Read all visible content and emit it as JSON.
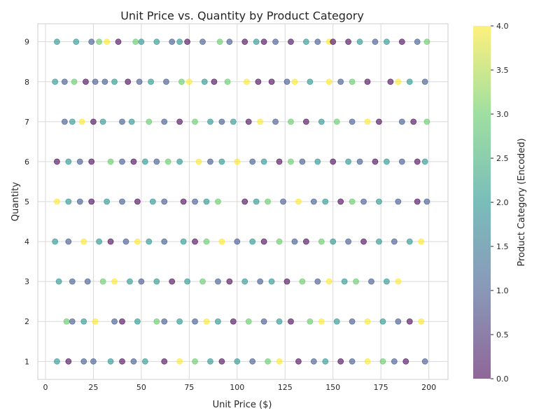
{
  "chart_data": {
    "type": "scatter",
    "title": "Unit Price vs. Quantity by Product Category",
    "xlabel": "Unit Price ($)",
    "ylabel": "Quantity",
    "xlim": [
      -4,
      210
    ],
    "ylim": [
      0.55,
      9.45
    ],
    "xticks": [
      0,
      25,
      50,
      75,
      100,
      125,
      150,
      175,
      200
    ],
    "yticks": [
      1,
      2,
      3,
      4,
      5,
      6,
      7,
      8,
      9
    ],
    "grid": true,
    "colorbar": {
      "label": "Product Category (Encoded)",
      "range": [
        0,
        4
      ],
      "ticks": [
        "0.0",
        "0.5",
        "1.0",
        "1.5",
        "2.0",
        "2.5",
        "3.0",
        "3.5",
        "4.0"
      ],
      "colormap": [
        "#440154",
        "#3b528b",
        "#21918c",
        "#5ec962",
        "#fde725"
      ]
    },
    "points": [
      [
        6,
        9,
        2
      ],
      [
        16,
        9,
        2
      ],
      [
        24,
        9,
        1
      ],
      [
        28,
        9,
        3
      ],
      [
        32,
        9,
        4
      ],
      [
        38,
        9,
        0
      ],
      [
        47,
        9,
        3
      ],
      [
        50,
        9,
        2
      ],
      [
        58,
        9,
        2
      ],
      [
        66,
        9,
        1
      ],
      [
        70,
        9,
        2
      ],
      [
        74,
        9,
        0
      ],
      [
        82,
        9,
        1
      ],
      [
        91,
        9,
        3
      ],
      [
        96,
        9,
        1
      ],
      [
        104,
        9,
        0
      ],
      [
        110,
        9,
        2
      ],
      [
        114,
        9,
        0
      ],
      [
        120,
        9,
        1
      ],
      [
        128,
        9,
        0
      ],
      [
        136,
        9,
        2
      ],
      [
        142,
        9,
        1
      ],
      [
        148,
        9,
        4
      ],
      [
        150,
        9,
        0
      ],
      [
        158,
        9,
        0
      ],
      [
        164,
        9,
        2
      ],
      [
        172,
        9,
        1
      ],
      [
        178,
        9,
        2
      ],
      [
        186,
        9,
        0
      ],
      [
        194,
        9,
        1
      ],
      [
        199,
        9,
        3
      ],
      [
        5,
        8,
        2
      ],
      [
        10,
        8,
        1
      ],
      [
        15,
        8,
        3
      ],
      [
        21,
        8,
        0
      ],
      [
        26,
        8,
        1
      ],
      [
        31,
        8,
        1
      ],
      [
        36,
        8,
        2
      ],
      [
        43,
        8,
        0
      ],
      [
        49,
        8,
        1
      ],
      [
        55,
        8,
        2
      ],
      [
        63,
        8,
        1
      ],
      [
        71,
        8,
        3
      ],
      [
        75,
        8,
        4
      ],
      [
        83,
        8,
        2
      ],
      [
        88,
        8,
        0
      ],
      [
        95,
        8,
        3
      ],
      [
        105,
        8,
        4
      ],
      [
        111,
        8,
        0
      ],
      [
        118,
        8,
        0
      ],
      [
        126,
        8,
        1
      ],
      [
        130,
        8,
        4
      ],
      [
        138,
        8,
        2
      ],
      [
        148,
        8,
        4
      ],
      [
        154,
        8,
        1
      ],
      [
        160,
        8,
        3
      ],
      [
        168,
        8,
        0
      ],
      [
        180,
        8,
        0
      ],
      [
        184,
        8,
        4
      ],
      [
        190,
        8,
        2
      ],
      [
        198,
        8,
        1
      ],
      [
        10,
        7,
        1
      ],
      [
        14,
        7,
        2
      ],
      [
        19,
        7,
        4
      ],
      [
        25,
        7,
        0
      ],
      [
        30,
        7,
        2
      ],
      [
        40,
        7,
        1
      ],
      [
        45,
        7,
        2
      ],
      [
        54,
        7,
        3
      ],
      [
        62,
        7,
        1
      ],
      [
        70,
        7,
        0
      ],
      [
        78,
        7,
        3
      ],
      [
        86,
        7,
        2
      ],
      [
        92,
        7,
        1
      ],
      [
        98,
        7,
        2
      ],
      [
        106,
        7,
        0
      ],
      [
        112,
        7,
        4
      ],
      [
        120,
        7,
        1
      ],
      [
        128,
        7,
        3
      ],
      [
        136,
        7,
        0
      ],
      [
        144,
        7,
        2
      ],
      [
        152,
        7,
        3
      ],
      [
        160,
        7,
        1
      ],
      [
        168,
        7,
        4
      ],
      [
        174,
        7,
        0
      ],
      [
        186,
        7,
        1
      ],
      [
        192,
        7,
        0
      ],
      [
        199,
        7,
        3
      ],
      [
        6,
        6,
        0
      ],
      [
        12,
        6,
        2
      ],
      [
        18,
        6,
        1
      ],
      [
        24,
        6,
        0
      ],
      [
        34,
        6,
        3
      ],
      [
        40,
        6,
        1
      ],
      [
        46,
        6,
        0
      ],
      [
        52,
        6,
        2
      ],
      [
        58,
        6,
        1
      ],
      [
        64,
        6,
        3
      ],
      [
        70,
        6,
        2
      ],
      [
        80,
        6,
        4
      ],
      [
        86,
        6,
        1
      ],
      [
        92,
        6,
        2
      ],
      [
        100,
        6,
        4
      ],
      [
        108,
        6,
        1
      ],
      [
        114,
        6,
        2
      ],
      [
        122,
        6,
        0
      ],
      [
        128,
        6,
        3
      ],
      [
        134,
        6,
        1
      ],
      [
        142,
        6,
        2
      ],
      [
        150,
        6,
        0
      ],
      [
        158,
        6,
        2
      ],
      [
        164,
        6,
        1
      ],
      [
        172,
        6,
        0
      ],
      [
        178,
        6,
        2
      ],
      [
        186,
        6,
        1
      ],
      [
        194,
        6,
        0
      ],
      [
        198,
        6,
        2
      ],
      [
        6,
        5,
        4
      ],
      [
        12,
        5,
        2
      ],
      [
        18,
        5,
        1
      ],
      [
        24,
        5,
        0
      ],
      [
        32,
        5,
        2
      ],
      [
        40,
        5,
        1
      ],
      [
        48,
        5,
        0
      ],
      [
        56,
        5,
        2
      ],
      [
        62,
        5,
        1
      ],
      [
        72,
        5,
        0
      ],
      [
        78,
        5,
        1
      ],
      [
        84,
        5,
        2
      ],
      [
        90,
        5,
        3
      ],
      [
        104,
        5,
        0
      ],
      [
        110,
        5,
        2
      ],
      [
        116,
        5,
        3
      ],
      [
        124,
        5,
        1
      ],
      [
        132,
        5,
        4
      ],
      [
        140,
        5,
        1
      ],
      [
        146,
        5,
        2
      ],
      [
        154,
        5,
        0
      ],
      [
        160,
        5,
        3
      ],
      [
        166,
        5,
        1
      ],
      [
        174,
        5,
        2
      ],
      [
        184,
        5,
        1
      ],
      [
        194,
        5,
        0
      ],
      [
        199,
        5,
        1
      ],
      [
        5,
        4,
        2
      ],
      [
        12,
        4,
        1
      ],
      [
        20,
        4,
        4
      ],
      [
        28,
        4,
        2
      ],
      [
        34,
        4,
        0
      ],
      [
        42,
        4,
        1
      ],
      [
        48,
        4,
        4
      ],
      [
        54,
        4,
        2
      ],
      [
        62,
        4,
        1
      ],
      [
        72,
        4,
        2
      ],
      [
        78,
        4,
        0
      ],
      [
        84,
        4,
        3
      ],
      [
        92,
        4,
        4
      ],
      [
        100,
        4,
        1
      ],
      [
        108,
        4,
        2
      ],
      [
        114,
        4,
        0
      ],
      [
        122,
        4,
        3
      ],
      [
        130,
        4,
        1
      ],
      [
        136,
        4,
        0
      ],
      [
        144,
        4,
        3
      ],
      [
        150,
        4,
        2
      ],
      [
        158,
        4,
        1
      ],
      [
        166,
        4,
        0
      ],
      [
        174,
        4,
        2
      ],
      [
        182,
        4,
        1
      ],
      [
        190,
        4,
        2
      ],
      [
        196,
        4,
        4
      ],
      [
        7,
        3,
        2
      ],
      [
        14,
        3,
        1
      ],
      [
        22,
        3,
        1
      ],
      [
        30,
        3,
        3
      ],
      [
        36,
        3,
        4
      ],
      [
        44,
        3,
        2
      ],
      [
        50,
        3,
        1
      ],
      [
        58,
        3,
        2
      ],
      [
        66,
        3,
        0
      ],
      [
        74,
        3,
        2
      ],
      [
        82,
        3,
        3
      ],
      [
        90,
        3,
        1
      ],
      [
        96,
        3,
        0
      ],
      [
        104,
        3,
        2
      ],
      [
        112,
        3,
        1
      ],
      [
        118,
        3,
        2
      ],
      [
        126,
        3,
        0
      ],
      [
        134,
        3,
        3
      ],
      [
        142,
        3,
        1
      ],
      [
        148,
        3,
        4
      ],
      [
        156,
        3,
        2
      ],
      [
        162,
        3,
        3
      ],
      [
        170,
        3,
        1
      ],
      [
        178,
        3,
        2
      ],
      [
        184,
        3,
        4
      ],
      [
        11,
        2,
        3
      ],
      [
        14,
        2,
        1
      ],
      [
        20,
        2,
        2
      ],
      [
        26,
        2,
        4
      ],
      [
        36,
        2,
        1
      ],
      [
        40,
        2,
        0
      ],
      [
        48,
        2,
        2
      ],
      [
        58,
        2,
        3
      ],
      [
        62,
        2,
        1
      ],
      [
        70,
        2,
        2
      ],
      [
        78,
        2,
        1
      ],
      [
        84,
        2,
        4
      ],
      [
        90,
        2,
        2
      ],
      [
        98,
        2,
        0
      ],
      [
        106,
        2,
        3
      ],
      [
        114,
        2,
        1
      ],
      [
        122,
        2,
        2
      ],
      [
        128,
        2,
        0
      ],
      [
        138,
        2,
        3
      ],
      [
        144,
        2,
        4
      ],
      [
        152,
        2,
        2
      ],
      [
        160,
        2,
        1
      ],
      [
        168,
        2,
        4
      ],
      [
        176,
        2,
        2
      ],
      [
        184,
        2,
        1
      ],
      [
        190,
        2,
        0
      ],
      [
        196,
        2,
        4
      ],
      [
        6,
        1,
        2
      ],
      [
        12,
        1,
        0
      ],
      [
        20,
        1,
        1
      ],
      [
        25,
        1,
        1
      ],
      [
        34,
        1,
        2
      ],
      [
        40,
        1,
        0
      ],
      [
        46,
        1,
        1
      ],
      [
        52,
        1,
        2
      ],
      [
        62,
        1,
        0
      ],
      [
        70,
        1,
        4
      ],
      [
        78,
        1,
        3
      ],
      [
        86,
        1,
        2
      ],
      [
        92,
        1,
        0
      ],
      [
        100,
        1,
        2
      ],
      [
        108,
        1,
        1
      ],
      [
        116,
        1,
        3
      ],
      [
        122,
        1,
        4
      ],
      [
        132,
        1,
        0
      ],
      [
        140,
        1,
        1
      ],
      [
        146,
        1,
        2
      ],
      [
        154,
        1,
        0
      ],
      [
        160,
        1,
        1
      ],
      [
        168,
        1,
        4
      ],
      [
        176,
        1,
        3
      ],
      [
        182,
        1,
        1
      ],
      [
        188,
        1,
        0
      ],
      [
        198,
        1,
        1
      ]
    ]
  }
}
